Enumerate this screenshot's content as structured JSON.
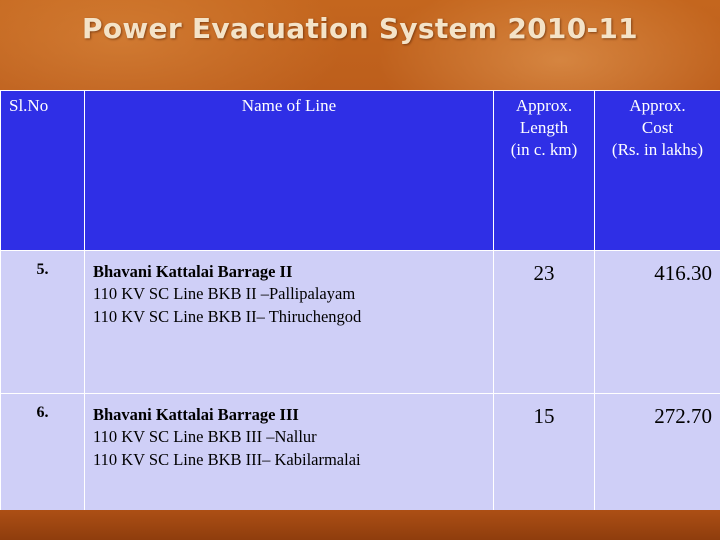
{
  "title": "Power Evacuation System 2010-11",
  "table": {
    "headers": {
      "sl_no": "Sl.No",
      "name": "Name of Line",
      "length": [
        "Approx.",
        "Length",
        "(in c. km)"
      ],
      "cost": [
        "Approx.",
        "Cost",
        "(Rs. in lakhs)"
      ]
    },
    "rows": [
      {
        "sl_no": "5.",
        "title": "Bhavani Kattalai Barrage II",
        "lines": [
          "110 KV SC Line BKB II –Pallipalayam",
          "110 KV SC Line BKB II– Thiruchengod"
        ],
        "length": "23",
        "cost": "416.30"
      },
      {
        "sl_no": "6.",
        "title": "Bhavani Kattalai Barrage III",
        "lines": [
          "110 KV SC Line BKB III –Nallur",
          "110 KV SC Line BKB III– Kabilarmalai"
        ],
        "length": "15",
        "cost": "272.70"
      }
    ]
  },
  "colors": {
    "background": "#b5561a",
    "header_fill": "#2f2fe6",
    "body_fill": "#cfcff7",
    "title_text": "#f4e3c8"
  }
}
